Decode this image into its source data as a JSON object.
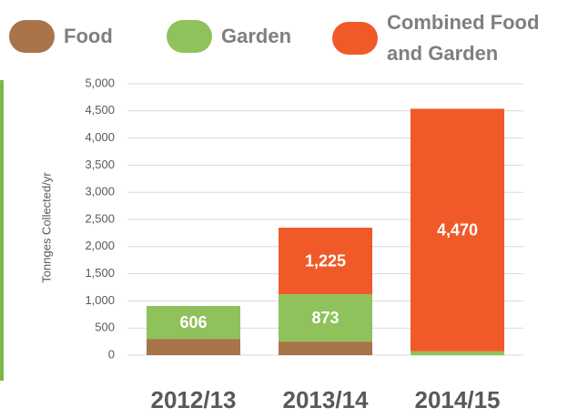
{
  "chart_data": {
    "type": "stacked-bar",
    "y_label": "Tonnges Collected/yr",
    "categories": [
      "2012/13",
      "2013/14",
      "2014/15"
    ],
    "series": [
      {
        "name": "Food",
        "color": "#a8744a",
        "values": [
          300,
          250,
          0
        ],
        "value_labels": [
          null,
          null,
          null
        ]
      },
      {
        "name": "Garden",
        "color": "#8fc25b",
        "values": [
          606,
          873,
          70
        ],
        "value_labels": [
          "606",
          "873",
          null
        ]
      },
      {
        "name": "Combined Food and Garden",
        "color": "#f05a28",
        "values": [
          0,
          1225,
          4470
        ],
        "value_labels": [
          null,
          "1,225",
          "4,470"
        ]
      }
    ],
    "ylim": [
      0,
      5000
    ],
    "yticks": [
      0,
      500,
      {
        "value": 1000,
        "label": "1,000"
      },
      {
        "value": 1500,
        "label": "1,500"
      },
      {
        "value": 2000,
        "label": "2,000"
      },
      {
        "value": 2500,
        "label": "2,500"
      },
      {
        "value": 3000,
        "label": "3,000"
      },
      {
        "value": 3500,
        "label": "3,500"
      },
      {
        "value": 4000,
        "label": "4,000"
      },
      {
        "value": 4500,
        "label": "4,500"
      },
      {
        "value": 5000,
        "label": "5,000"
      }
    ],
    "grid": true
  }
}
